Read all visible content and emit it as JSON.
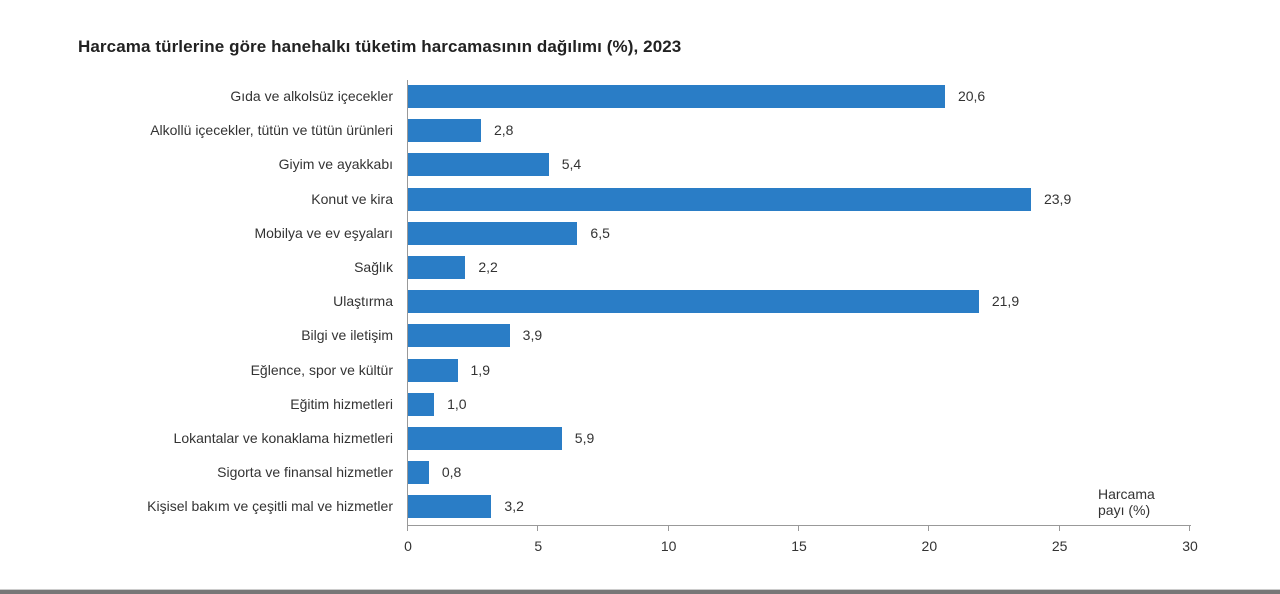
{
  "chart_data": {
    "type": "bar",
    "orientation": "horizontal",
    "title": "Harcama türlerine göre hanehalkı tüketim harcamasının dağılımı (%), 2023",
    "xlabel": "Harcama payı (%)",
    "ylabel": "",
    "xlim": [
      0,
      30
    ],
    "xticks": [
      "0",
      "5",
      "10",
      "15",
      "20",
      "25",
      "30"
    ],
    "grid": false,
    "legend": null,
    "bar_color": "#2a7dc6",
    "categories": [
      "Gıda ve alkolsüz içecekler",
      "Alkollü içecekler, tütün ve tütün ürünleri",
      "Giyim ve ayakkabı",
      "Konut ve kira",
      "Mobilya ve ev eşyaları",
      "Sağlık",
      "Ulaştırma",
      "Bilgi ve iletişim",
      "Eğlence, spor ve kültür",
      "Eğitim hizmetleri",
      "Lokantalar ve konaklama hizmetleri",
      "Sigorta ve finansal hizmetler",
      "Kişisel bakım ve çeşitli mal ve hizmetler"
    ],
    "values": [
      20.6,
      2.8,
      5.4,
      23.9,
      6.5,
      2.2,
      21.9,
      3.9,
      1.9,
      1.0,
      5.9,
      0.8,
      3.2
    ],
    "value_labels": [
      "20,6",
      "2,8",
      "5,4",
      "23,9",
      "6,5",
      "2,2",
      "21,9",
      "3,9",
      "1,9",
      "1,0",
      "5,9",
      "0,8",
      "3,2"
    ]
  },
  "labels": {
    "title": "Harcama türlerine göre hanehalkı tüketim harcamasının dağılımı (%), 2023",
    "xlabel_line1": "Harcama",
    "xlabel_line2": "payı (%)"
  }
}
